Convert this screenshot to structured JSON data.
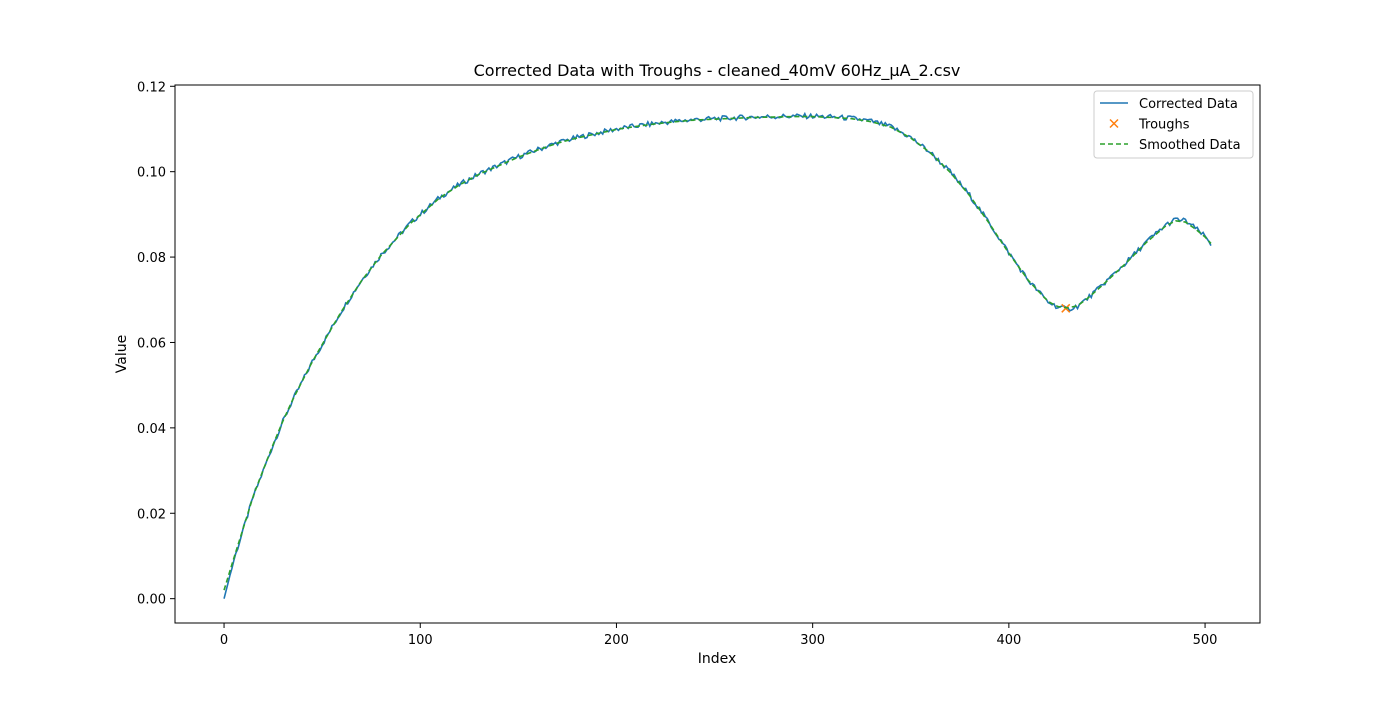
{
  "chart_data": {
    "type": "line",
    "title": "Corrected Data with Troughs - cleaned_40mV 60Hz_µA_2.csv",
    "xlabel": "Index",
    "ylabel": "Value",
    "xlim": [
      -25,
      528
    ],
    "ylim": [
      -0.0057,
      0.1203
    ],
    "x_ticks": [
      0,
      100,
      200,
      300,
      400,
      500
    ],
    "x_tick_labels": [
      "0",
      "100",
      "200",
      "300",
      "400",
      "500"
    ],
    "y_ticks": [
      0.0,
      0.02,
      0.04,
      0.06,
      0.08,
      0.1,
      0.12
    ],
    "y_tick_labels": [
      "0.00",
      "0.02",
      "0.04",
      "0.06",
      "0.08",
      "0.10",
      "0.12"
    ],
    "grid": false,
    "legend_position": "upper right",
    "series": [
      {
        "name": "Corrected Data",
        "style": "solid",
        "color": "#1f77b4",
        "x": [
          0,
          5,
          10,
          15,
          20,
          25,
          30,
          35,
          40,
          45,
          50,
          55,
          60,
          65,
          70,
          75,
          80,
          85,
          90,
          95,
          100,
          110,
          120,
          130,
          140,
          150,
          160,
          170,
          180,
          190,
          200,
          210,
          220,
          230,
          240,
          250,
          260,
          270,
          280,
          290,
          300,
          310,
          320,
          330,
          340,
          350,
          360,
          370,
          380,
          390,
          400,
          410,
          420,
          425,
          430,
          435,
          440,
          445,
          450,
          460,
          470,
          480,
          485,
          490,
          495,
          500,
          503
        ],
        "y": [
          0.0,
          0.009,
          0.0165,
          0.024,
          0.03,
          0.036,
          0.0415,
          0.0465,
          0.051,
          0.0555,
          0.0595,
          0.0635,
          0.0675,
          0.071,
          0.0745,
          0.0775,
          0.0805,
          0.083,
          0.0855,
          0.088,
          0.09,
          0.094,
          0.097,
          0.0995,
          0.1015,
          0.1035,
          0.1052,
          0.1068,
          0.108,
          0.109,
          0.11,
          0.1107,
          0.1113,
          0.1118,
          0.1122,
          0.1124,
          0.1126,
          0.1128,
          0.1129,
          0.113,
          0.113,
          0.1128,
          0.1125,
          0.1118,
          0.1105,
          0.108,
          0.1045,
          0.1,
          0.0945,
          0.088,
          0.081,
          0.0745,
          0.0695,
          0.0683,
          0.0678,
          0.0685,
          0.0703,
          0.0723,
          0.0745,
          0.0788,
          0.0835,
          0.0875,
          0.0888,
          0.0885,
          0.0868,
          0.0848,
          0.083
        ],
        "noise": 0.0006
      },
      {
        "name": "Troughs",
        "style": "marker-x",
        "color": "#ff7f0e",
        "x": [
          429
        ],
        "y": [
          0.068
        ]
      },
      {
        "name": "Smoothed Data",
        "style": "dashed",
        "color": "#2ca02c",
        "x": [
          0,
          5,
          10,
          15,
          20,
          25,
          30,
          35,
          40,
          45,
          50,
          55,
          60,
          65,
          70,
          75,
          80,
          85,
          90,
          95,
          100,
          110,
          120,
          130,
          140,
          150,
          160,
          170,
          180,
          190,
          200,
          210,
          220,
          230,
          240,
          250,
          260,
          270,
          280,
          290,
          300,
          310,
          320,
          330,
          340,
          350,
          360,
          370,
          380,
          390,
          400,
          410,
          420,
          425,
          430,
          435,
          440,
          445,
          450,
          460,
          470,
          480,
          485,
          490,
          495,
          500,
          503
        ],
        "y": [
          0.002,
          0.0095,
          0.0168,
          0.0242,
          0.0302,
          0.0361,
          0.0416,
          0.0466,
          0.0511,
          0.0555,
          0.0595,
          0.0635,
          0.0674,
          0.0709,
          0.0744,
          0.0774,
          0.0804,
          0.0829,
          0.0854,
          0.0879,
          0.0899,
          0.0939,
          0.0969,
          0.0994,
          0.1014,
          0.1034,
          0.1051,
          0.1067,
          0.1079,
          0.1089,
          0.1099,
          0.1106,
          0.1112,
          0.1117,
          0.1121,
          0.1123,
          0.1125,
          0.1127,
          0.1128,
          0.1129,
          0.1129,
          0.1127,
          0.1124,
          0.1117,
          0.1104,
          0.1079,
          0.1044,
          0.0999,
          0.0944,
          0.0879,
          0.0809,
          0.0745,
          0.0696,
          0.0684,
          0.0681,
          0.0686,
          0.0703,
          0.0723,
          0.0744,
          0.0787,
          0.0834,
          0.0873,
          0.0885,
          0.0882,
          0.0866,
          0.0847,
          0.0832
        ]
      }
    ]
  }
}
